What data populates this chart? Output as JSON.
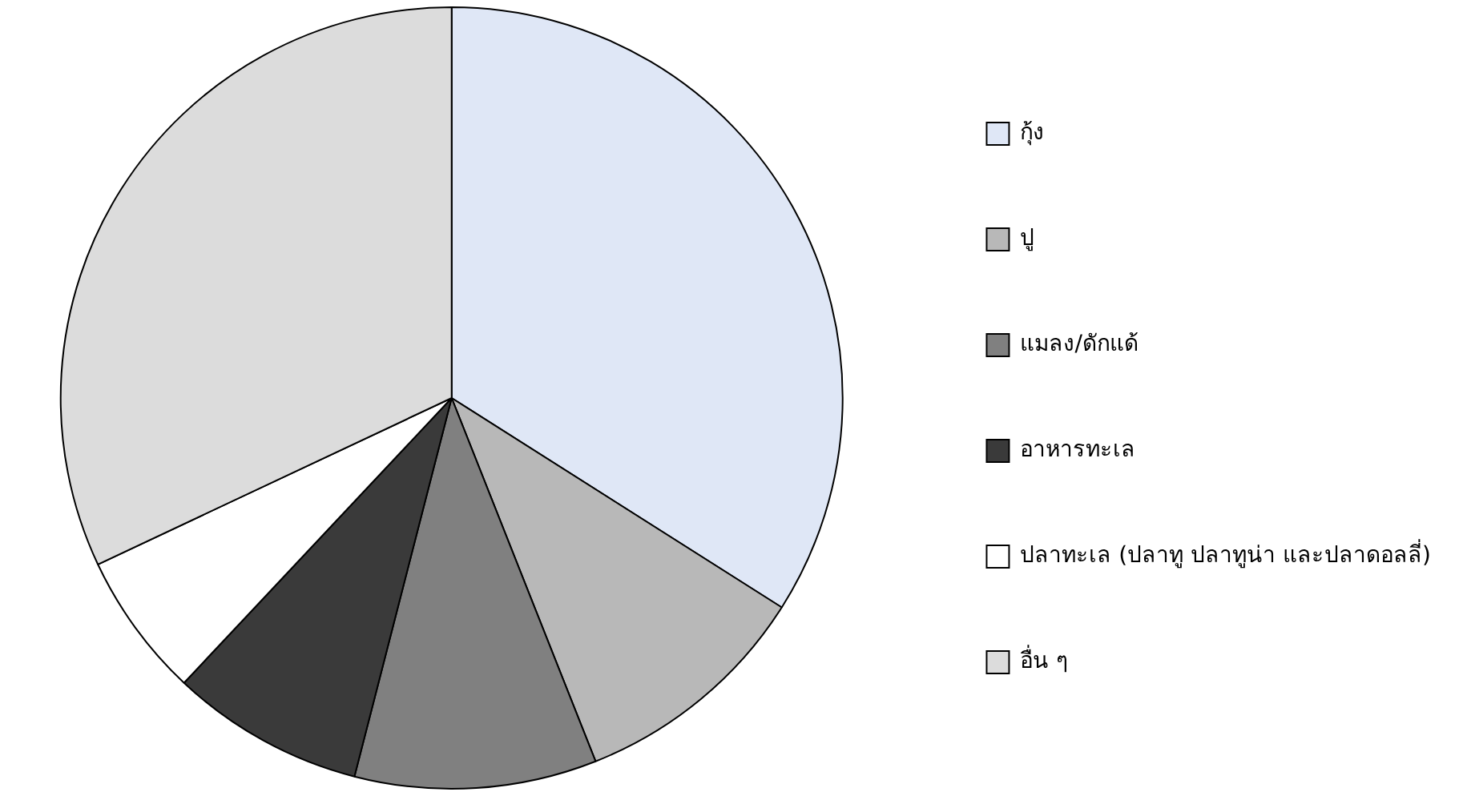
{
  "chart_data": {
    "type": "pie",
    "categories": [
      "กุ้ง",
      "ปู",
      "แมลง/ดักแด้",
      "อาหารทะเล",
      "ปลาทะเล (ปลาทู ปลาทูน่า และปลาดอลลี่)",
      "อื่น ๆ"
    ],
    "values": [
      34,
      10,
      10,
      8,
      6,
      32
    ],
    "colors": [
      "#dfe7f6",
      "#b8b8b8",
      "#808080",
      "#3a3a3a",
      "#ffffff",
      "#dcdcdc"
    ],
    "legend": "right"
  }
}
